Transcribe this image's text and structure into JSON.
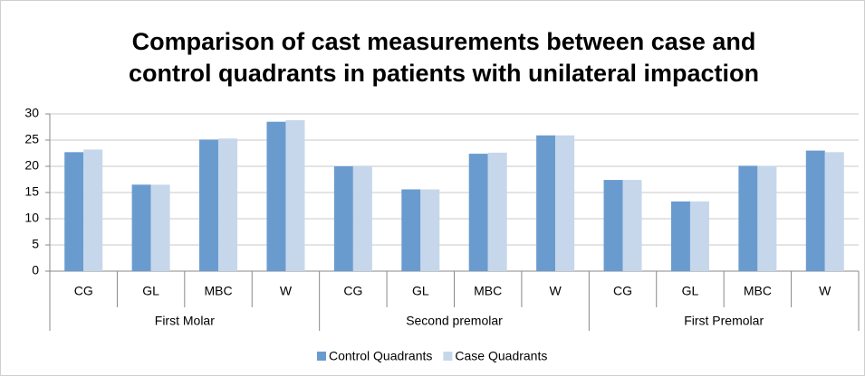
{
  "chart_data": {
    "type": "bar",
    "title": [
      "Comparison of cast measurements between case and",
      "control quadrants in patients with unilateral impaction"
    ],
    "groups": [
      {
        "name": "First Molar",
        "categories": [
          "CG",
          "GL",
          "MBC",
          "W"
        ]
      },
      {
        "name": "Second premolar",
        "categories": [
          "CG",
          "GL",
          "MBC",
          "W"
        ]
      },
      {
        "name": "First Premolar",
        "categories": [
          "CG",
          "GL",
          "MBC",
          "W"
        ]
      }
    ],
    "series": [
      {
        "name": "Control Quadrants",
        "color": "#6a9bcf",
        "values": [
          22.7,
          16.5,
          25.1,
          28.5,
          20.0,
          15.6,
          22.4,
          25.9,
          17.4,
          13.3,
          20.1,
          23.0
        ]
      },
      {
        "name": "Case Quadrants",
        "color": "#c6d7eb",
        "values": [
          23.2,
          16.5,
          25.3,
          28.8,
          20.0,
          15.6,
          22.6,
          25.9,
          17.4,
          13.3,
          20.1,
          22.7
        ]
      }
    ],
    "ylim": [
      0,
      30
    ],
    "yticks": [
      0,
      5,
      10,
      15,
      20,
      25,
      30
    ],
    "grid": true,
    "legend": "bottom"
  }
}
